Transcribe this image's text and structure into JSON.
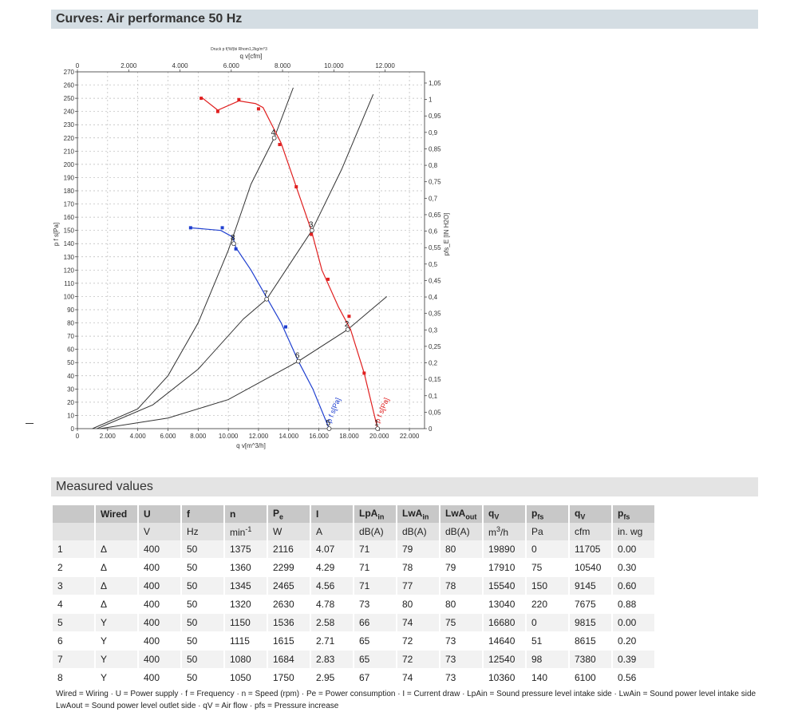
{
  "header": {
    "title": "Curves: Air performance 50 Hz"
  },
  "measured": {
    "title": "Measured values"
  },
  "chart_data": {
    "type": "line",
    "title": "Druck p f(%f)bi Rhom1,2kg/m^3",
    "xlabel": "q v[m^3/h]",
    "x2label": "q v[cfm]",
    "ylabel": "p f s[Pa]",
    "y2label": "pfs_E [IN H2O]",
    "xlim": [
      0,
      23000
    ],
    "ylim": [
      0,
      270
    ],
    "x_ticks": [
      "0",
      "2.000",
      "4.000",
      "6.000",
      "8.000",
      "10.000",
      "12.000",
      "14.000",
      "16.000",
      "18.000",
      "20.000",
      "22.000"
    ],
    "x_tick_values": [
      0,
      2000,
      4000,
      6000,
      8000,
      10000,
      12000,
      14000,
      16000,
      18000,
      20000,
      22000
    ],
    "x2_ticks": [
      "0",
      "2.000",
      "4.000",
      "6.000",
      "8.000",
      "10.000",
      "12.000"
    ],
    "x2_tick_values": [
      0,
      2000,
      4000,
      6000,
      8000,
      10000,
      12000
    ],
    "y_ticks": [
      "0",
      "10",
      "20",
      "30",
      "40",
      "50",
      "60",
      "70",
      "80",
      "90",
      "100",
      "110",
      "120",
      "130",
      "140",
      "150",
      "160",
      "170",
      "180",
      "190",
      "200",
      "210",
      "220",
      "230",
      "240",
      "250",
      "260",
      "270"
    ],
    "y2_ticks": [
      "0",
      "0,05",
      "0,1",
      "0,15",
      "0,2",
      "0,25",
      "0,3",
      "0,35",
      "0,4",
      "0,45",
      "0,5",
      "0,55",
      "0,6",
      "0,65",
      "0,7",
      "0,75",
      "0,8",
      "0,85",
      "0,9",
      "0,95",
      "1",
      "1,05"
    ],
    "y2_tick_values": [
      0,
      0.05,
      0.1,
      0.15,
      0.2,
      0.25,
      0.3,
      0.35,
      0.4,
      0.45,
      0.5,
      0.55,
      0.6,
      0.65,
      0.7,
      0.75,
      0.8,
      0.85,
      0.9,
      0.95,
      1.0,
      1.05
    ],
    "grid": true,
    "series": [
      {
        "name": "p f s[Pa]",
        "color": "#e02020",
        "x": [
          8300,
          9300,
          10700,
          11800,
          12300,
          13500,
          14500,
          15500,
          16200,
          17300,
          18100,
          19000,
          19890
        ],
        "y": [
          250,
          241,
          248,
          246,
          243,
          216,
          183,
          150,
          120,
          92,
          75,
          42,
          0
        ],
        "markers_x": [
          8200,
          9300,
          10700,
          12000,
          13400,
          14500,
          15500,
          16600,
          18000,
          19000
        ],
        "markers_y": [
          250,
          240,
          249,
          242,
          215,
          183,
          147,
          113,
          85,
          42
        ]
      },
      {
        "name": "p f s[Pa]",
        "color": "#2040d0",
        "x": [
          7500,
          9500,
          10300,
          10500,
          11500,
          12500,
          13500,
          14640,
          15600,
          16680
        ],
        "y": [
          152,
          150,
          145,
          137,
          120,
          100,
          80,
          51,
          30,
          0
        ],
        "markers_x": [
          7500,
          9600,
          10500,
          13800
        ],
        "markers_y": [
          152,
          152,
          136,
          77
        ]
      }
    ],
    "system_lines": [
      {
        "points": [
          [
            1000,
            0
          ],
          [
            4000,
            15
          ],
          [
            6000,
            40
          ],
          [
            8000,
            80
          ],
          [
            10000,
            135
          ],
          [
            11500,
            185
          ],
          [
            13040,
            220
          ],
          [
            14300,
            258
          ]
        ]
      },
      {
        "points": [
          [
            1300,
            0
          ],
          [
            5000,
            18
          ],
          [
            8000,
            45
          ],
          [
            11000,
            83
          ],
          [
            12540,
            98
          ],
          [
            15540,
            150
          ],
          [
            17500,
            196
          ],
          [
            19600,
            253
          ]
        ]
      },
      {
        "points": [
          [
            1500,
            0
          ],
          [
            6000,
            8
          ],
          [
            10000,
            22
          ],
          [
            14640,
            51
          ],
          [
            17910,
            75
          ],
          [
            20500,
            100
          ]
        ]
      }
    ],
    "operating_points": [
      {
        "label": "1",
        "x": 19890,
        "y": 0
      },
      {
        "label": "2",
        "x": 17910,
        "y": 75
      },
      {
        "label": "3",
        "x": 15540,
        "y": 150
      },
      {
        "label": "4",
        "x": 13040,
        "y": 220
      },
      {
        "label": "5",
        "x": 16680,
        "y": 0
      },
      {
        "label": "6",
        "x": 14640,
        "y": 51
      },
      {
        "label": "7",
        "x": 12540,
        "y": 98
      },
      {
        "label": "8",
        "x": 10360,
        "y": 140
      }
    ]
  },
  "table": {
    "headers": [
      "",
      "Wired",
      "U",
      "f",
      "n",
      "Pe",
      "I",
      "LpAin",
      "LwAin",
      "LwAout",
      "qV",
      "pfs",
      "qV",
      "pfs"
    ],
    "units": [
      "",
      "",
      "V",
      "Hz",
      "min-1",
      "W",
      "A",
      "dB(A)",
      "dB(A)",
      "dB(A)",
      "m3/h",
      "Pa",
      "cfm",
      "in. wg"
    ],
    "rows": [
      [
        "1",
        "Δ",
        "400",
        "50",
        "1375",
        "2116",
        "4.07",
        "71",
        "79",
        "80",
        "19890",
        "0",
        "11705",
        "0.00"
      ],
      [
        "2",
        "Δ",
        "400",
        "50",
        "1360",
        "2299",
        "4.29",
        "71",
        "78",
        "79",
        "17910",
        "75",
        "10540",
        "0.30"
      ],
      [
        "3",
        "Δ",
        "400",
        "50",
        "1345",
        "2465",
        "4.56",
        "71",
        "77",
        "78",
        "15540",
        "150",
        "9145",
        "0.60"
      ],
      [
        "4",
        "Δ",
        "400",
        "50",
        "1320",
        "2630",
        "4.78",
        "73",
        "80",
        "80",
        "13040",
        "220",
        "7675",
        "0.88"
      ],
      [
        "5",
        "Y",
        "400",
        "50",
        "1150",
        "1536",
        "2.58",
        "66",
        "74",
        "75",
        "16680",
        "0",
        "9815",
        "0.00"
      ],
      [
        "6",
        "Y",
        "400",
        "50",
        "1115",
        "1615",
        "2.71",
        "65",
        "72",
        "73",
        "14640",
        "51",
        "8615",
        "0.20"
      ],
      [
        "7",
        "Y",
        "400",
        "50",
        "1080",
        "1684",
        "2.83",
        "65",
        "72",
        "73",
        "12540",
        "98",
        "7380",
        "0.39"
      ],
      [
        "8",
        "Y",
        "400",
        "50",
        "1050",
        "1750",
        "2.95",
        "67",
        "74",
        "73",
        "10360",
        "140",
        "6100",
        "0.56"
      ]
    ]
  },
  "legend": {
    "line1": "Wired = Wiring · U = Power supply · f = Frequency · n = Speed (rpm) · Pe = Power consumption · I = Current draw · LpAin = Sound pressure level intake side · LwAin = Sound power level intake side",
    "line2": "LwAout = Sound power level outlet side · qV = Air flow · pfs = Pressure increase"
  }
}
